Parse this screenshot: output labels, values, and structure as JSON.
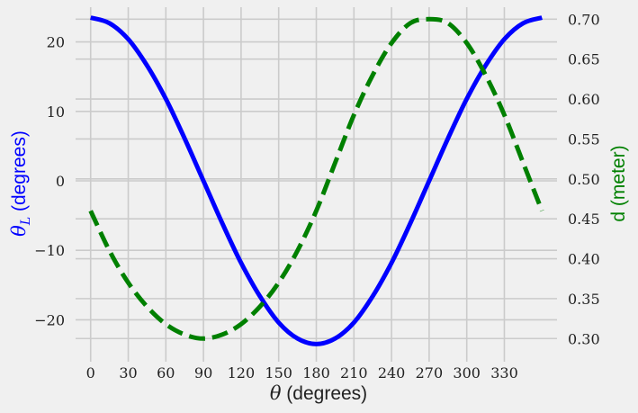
{
  "chart_data": {
    "type": "line",
    "xlabel_symbol": "θ",
    "xlabel_text": " (degrees)",
    "ylabel_left_symbol": "θ",
    "ylabel_left_sub": "L",
    "ylabel_left_text": " (degrees)",
    "ylabel_right": "d (meter)",
    "xlim": [
      -12,
      372
    ],
    "xticks": [
      0,
      30,
      60,
      90,
      120,
      150,
      180,
      210,
      240,
      270,
      300,
      330
    ],
    "xtick_labels": [
      "0",
      "30",
      "60",
      "90",
      "120",
      "150",
      "180",
      "210",
      "240",
      "270",
      "300",
      "330"
    ],
    "ylim_left": [
      -25,
      25
    ],
    "yticks_left": [
      -20,
      -10,
      0,
      10,
      20
    ],
    "ytick_labels_left": [
      "−20",
      "−10",
      "0",
      "10",
      "20"
    ],
    "ylim_right": [
      0.28,
      0.715
    ],
    "yticks_right": [
      0.3,
      0.35,
      0.4,
      0.45,
      0.5,
      0.55,
      0.6,
      0.65,
      0.7
    ],
    "ytick_labels_right": [
      "0.30",
      "0.35",
      "0.40",
      "0.45",
      "0.50",
      "0.55",
      "0.60",
      "0.65",
      "0.70"
    ],
    "grid": true,
    "left_color": "#0000ff",
    "right_color": "#008000",
    "series": [
      {
        "axis": "left",
        "style": "solid",
        "color": "#0000ff",
        "x": [
          0,
          15,
          30,
          45,
          60,
          75,
          90,
          105,
          120,
          135,
          150,
          165,
          180,
          195,
          210,
          225,
          240,
          255,
          270,
          285,
          300,
          315,
          330,
          345,
          360
        ],
        "y": [
          23.5,
          22.7,
          20.4,
          16.6,
          11.8,
          6.1,
          0,
          -6.1,
          -11.8,
          -16.6,
          -20.4,
          -22.7,
          -23.5,
          -22.7,
          -20.4,
          -16.6,
          -11.8,
          -6.1,
          0,
          6.1,
          11.8,
          16.6,
          20.4,
          22.7,
          23.5
        ]
      },
      {
        "axis": "right",
        "style": "dashed",
        "color": "#008000",
        "x": [
          0,
          15,
          30,
          45,
          60,
          75,
          90,
          105,
          120,
          135,
          150,
          165,
          180,
          195,
          210,
          225,
          240,
          255,
          270,
          285,
          300,
          315,
          330,
          345,
          360
        ],
        "y": [
          0.46,
          0.41,
          0.37,
          0.34,
          0.318,
          0.305,
          0.3,
          0.305,
          0.318,
          0.34,
          0.37,
          0.41,
          0.46,
          0.52,
          0.58,
          0.63,
          0.67,
          0.695,
          0.7,
          0.695,
          0.67,
          0.63,
          0.58,
          0.52,
          0.46
        ]
      }
    ]
  }
}
